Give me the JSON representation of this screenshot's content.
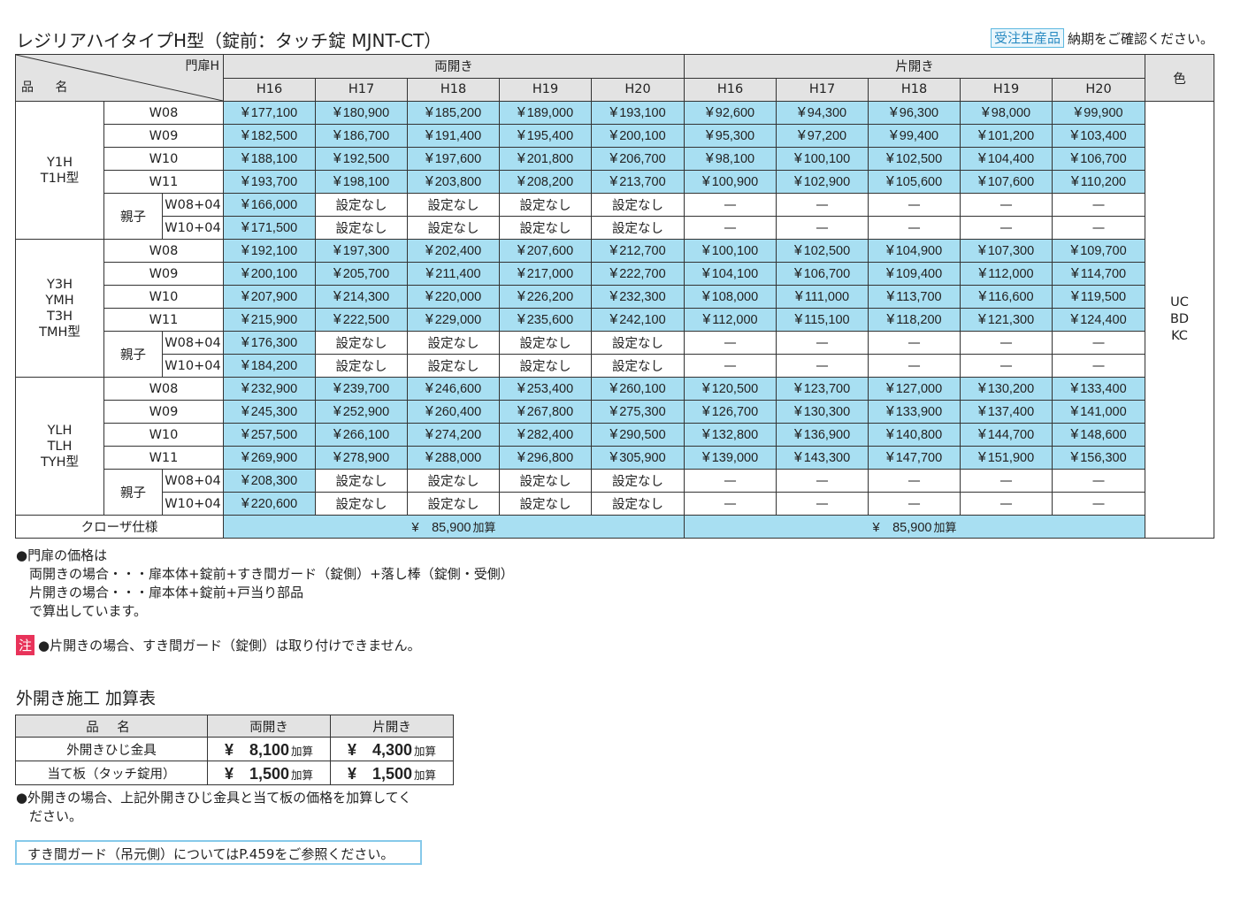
{
  "title": "レジリアハイタイプH型（錠前：タッチ錠 MJNT-CT）",
  "order_badge": "受注生産品",
  "order_text": "納期をご確認ください。",
  "header": {
    "corner_top": "門扉H",
    "corner_bottom": "品 名",
    "double": "両開き",
    "single": "片開き",
    "color": "色",
    "heights": [
      "H16",
      "H17",
      "H18",
      "H19",
      "H20"
    ]
  },
  "groups": [
    {
      "model": [
        "Y1H",
        "T1H型"
      ],
      "rows": [
        {
          "w": "W08",
          "double": [
            "177,100",
            "180,900",
            "185,200",
            "189,000",
            "193,100"
          ],
          "single": [
            "92,600",
            "94,300",
            "96,300",
            "98,000",
            "99,900"
          ]
        },
        {
          "w": "W09",
          "double": [
            "182,500",
            "186,700",
            "191,400",
            "195,400",
            "200,100"
          ],
          "single": [
            "95,300",
            "97,200",
            "99,400",
            "101,200",
            "103,400"
          ]
        },
        {
          "w": "W10",
          "double": [
            "188,100",
            "192,500",
            "197,600",
            "201,800",
            "206,700"
          ],
          "single": [
            "98,100",
            "100,100",
            "102,500",
            "104,400",
            "106,700"
          ]
        },
        {
          "w": "W11",
          "double": [
            "193,700",
            "198,100",
            "203,800",
            "208,200",
            "213,700"
          ],
          "single": [
            "100,900",
            "102,900",
            "105,600",
            "107,600",
            "110,200"
          ]
        }
      ],
      "oya_label": "親子",
      "oya": [
        {
          "w": "W08+04",
          "price": "166,000"
        },
        {
          "w": "W10+04",
          "price": "171,500"
        }
      ]
    },
    {
      "model": [
        "Y3H",
        "YMH",
        "T3H",
        "TMH型"
      ],
      "rows": [
        {
          "w": "W08",
          "double": [
            "192,100",
            "197,300",
            "202,400",
            "207,600",
            "212,700"
          ],
          "single": [
            "100,100",
            "102,500",
            "104,900",
            "107,300",
            "109,700"
          ]
        },
        {
          "w": "W09",
          "double": [
            "200,100",
            "205,700",
            "211,400",
            "217,000",
            "222,700"
          ],
          "single": [
            "104,100",
            "106,700",
            "109,400",
            "112,000",
            "114,700"
          ]
        },
        {
          "w": "W10",
          "double": [
            "207,900",
            "214,300",
            "220,000",
            "226,200",
            "232,300"
          ],
          "single": [
            "108,000",
            "111,000",
            "113,700",
            "116,600",
            "119,500"
          ]
        },
        {
          "w": "W11",
          "double": [
            "215,900",
            "222,500",
            "229,000",
            "235,600",
            "242,100"
          ],
          "single": [
            "112,000",
            "115,100",
            "118,200",
            "121,300",
            "124,400"
          ]
        }
      ],
      "oya_label": "親子",
      "oya": [
        {
          "w": "W08+04",
          "price": "176,300"
        },
        {
          "w": "W10+04",
          "price": "184,200"
        }
      ]
    },
    {
      "model": [
        "YLH",
        "TLH",
        "TYH型"
      ],
      "rows": [
        {
          "w": "W08",
          "double": [
            "232,900",
            "239,700",
            "246,600",
            "253,400",
            "260,100"
          ],
          "single": [
            "120,500",
            "123,700",
            "127,000",
            "130,200",
            "133,400"
          ]
        },
        {
          "w": "W09",
          "double": [
            "245,300",
            "252,900",
            "260,400",
            "267,800",
            "275,300"
          ],
          "single": [
            "126,700",
            "130,300",
            "133,900",
            "137,400",
            "141,000"
          ]
        },
        {
          "w": "W10",
          "double": [
            "257,500",
            "266,100",
            "274,200",
            "282,400",
            "290,500"
          ],
          "single": [
            "132,800",
            "136,900",
            "140,800",
            "144,700",
            "148,600"
          ]
        },
        {
          "w": "W11",
          "double": [
            "269,900",
            "278,900",
            "288,000",
            "296,800",
            "305,900"
          ],
          "single": [
            "139,000",
            "143,300",
            "147,700",
            "151,900",
            "156,300"
          ]
        }
      ],
      "oya_label": "親子",
      "oya": [
        {
          "w": "W08+04",
          "price": "208,300"
        },
        {
          "w": "W10+04",
          "price": "220,600"
        }
      ]
    }
  ],
  "yen": "¥",
  "no_setting": "設定なし",
  "dash": "—",
  "colors": [
    "UC",
    "BD",
    "KC"
  ],
  "closer": {
    "label": "クローザ仕様",
    "double": "85,900",
    "single": "85,900",
    "add": "加算"
  },
  "notes": [
    "●門扉の価格は",
    "　両開きの場合・・・扉本体+錠前+すき間ガード（錠側）+落し棒（錠側・受側）",
    "　片開きの場合・・・扉本体+錠前+戸当り部品",
    "　で算出しています。"
  ],
  "caution_mark": "注",
  "caution_text": "●片開きの場合、すき間ガード（錠側）は取り付けできません。",
  "sub": {
    "title": "外開き施工 加算表",
    "headers": [
      "品 名",
      "両開き",
      "片開き"
    ],
    "rows": [
      {
        "name": "外開きひじ金具",
        "double": "8,100",
        "single": "4,300"
      },
      {
        "name": "当て板（タッチ錠用）",
        "double": "1,500",
        "single": "1,500"
      }
    ],
    "add": "加算",
    "note": "●外開きの場合、上記外開きひじ金具と当て板の価格を加算してく\n　ださい。"
  },
  "ref_text": "すき間ガード（吊元側）についてはP.459をご参照ください。"
}
